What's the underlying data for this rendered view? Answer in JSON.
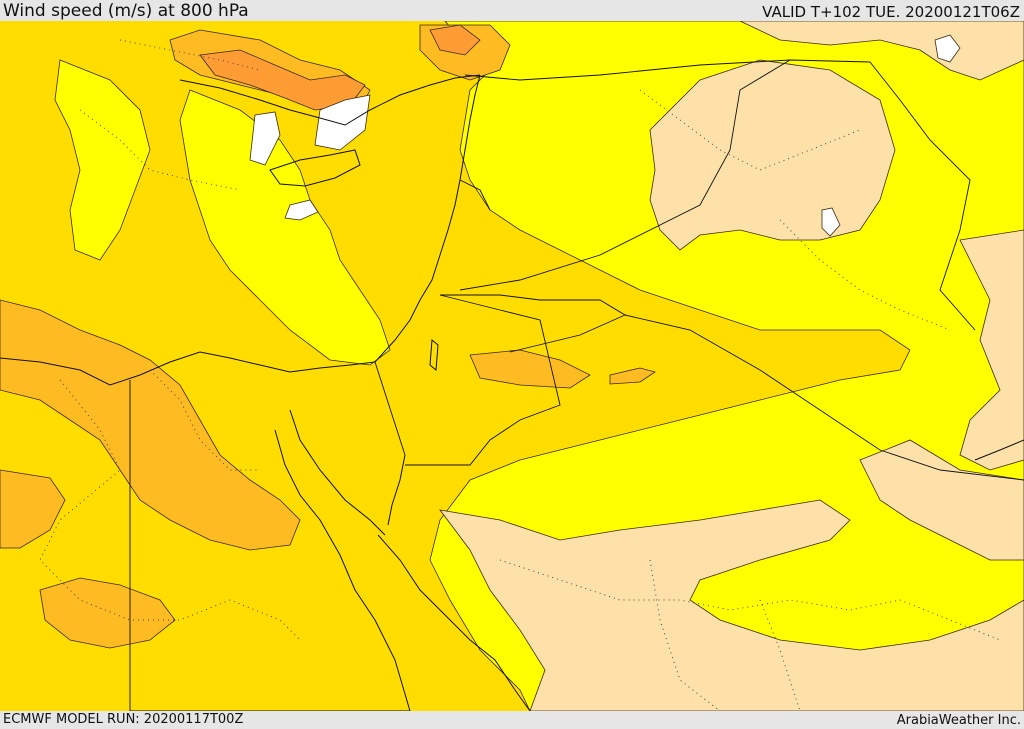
{
  "header": {
    "title": "Wind speed (m/s) at 800 hPa",
    "valid_time": "VALID T+102 TUE. 20200121T06Z"
  },
  "footer": {
    "model_run": "ECMWF MODEL RUN: 20200117T00Z",
    "credit": "ArabiaWeather Inc."
  },
  "colors": {
    "band_lowest": "#fde1a9",
    "band_low": "#ffff00",
    "band_mid": "#ffdd00",
    "band_high": "#ffbb22",
    "band_higher": "#ff9c33",
    "band_highest": "#ffffff",
    "border_line": "#111111",
    "header_bg": "#e6e6e6"
  }
}
